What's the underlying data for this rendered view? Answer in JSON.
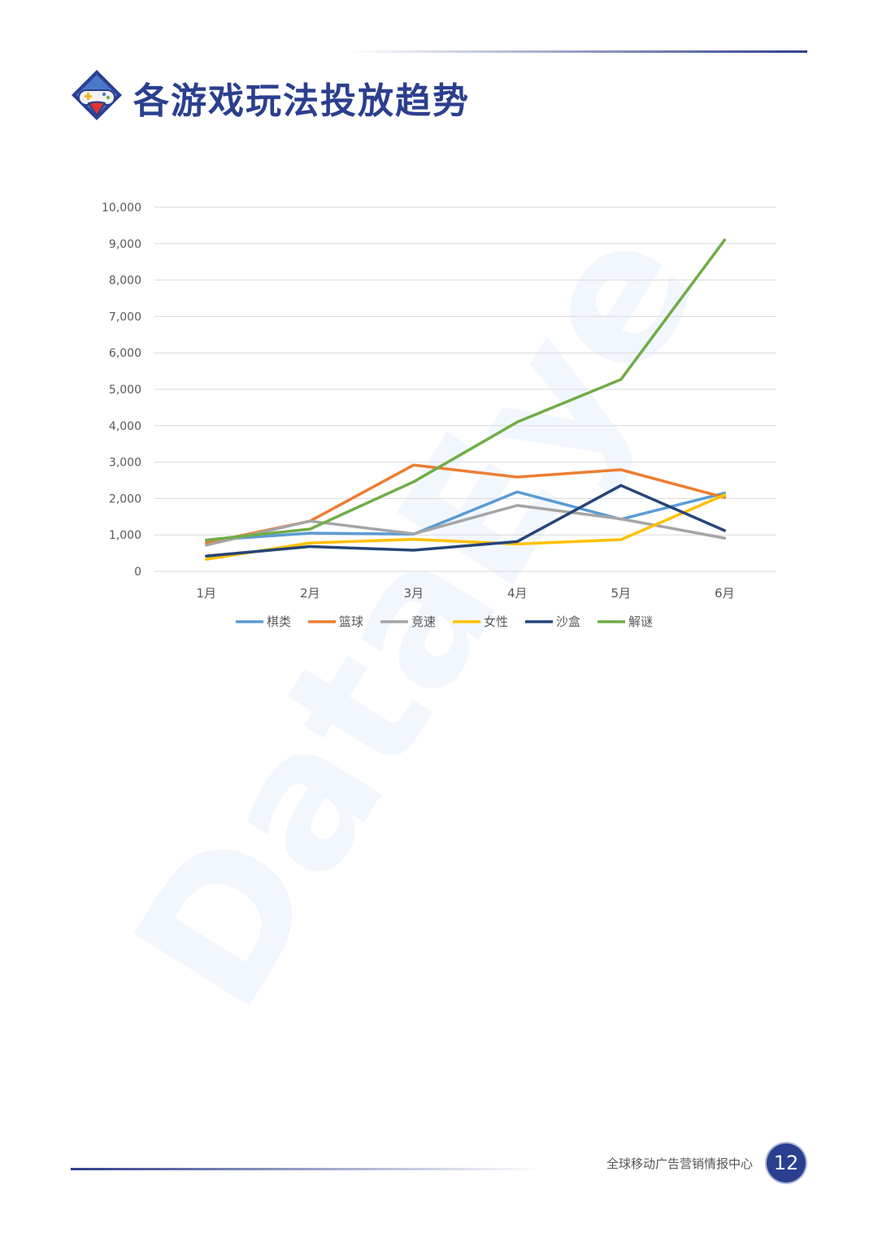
{
  "header": {
    "title": "各游戏玩法投放趋势"
  },
  "watermark": {
    "text": "DataEye"
  },
  "footer": {
    "org": "全球移动广告营销情报中心",
    "page": "12"
  },
  "colors": {
    "brand": "#2b3f8f",
    "grid": "#d9d9d9",
    "axis_text": "#595959"
  },
  "icons": {
    "logo": "gamepad-badge-icon"
  },
  "chart_data": {
    "type": "line",
    "title": "",
    "xlabel": "",
    "ylabel": "",
    "categories": [
      "1月",
      "2月",
      "3月",
      "4月",
      "5月",
      "6月"
    ],
    "ylim": [
      0,
      10000
    ],
    "yticks": [
      0,
      1000,
      2000,
      3000,
      4000,
      5000,
      6000,
      7000,
      8000,
      9000,
      10000
    ],
    "ytick_labels": [
      "0",
      "1,000",
      "2,000",
      "3,000",
      "4,000",
      "5,000",
      "6,000",
      "7,000",
      "8,000",
      "9,000",
      "10,000"
    ],
    "grid": true,
    "legend_position": "bottom",
    "series": [
      {
        "name": "棋类",
        "color": "#5b9bd5",
        "values": [
          850,
          1050,
          1020,
          2180,
          1430,
          2150
        ]
      },
      {
        "name": "篮球",
        "color": "#ed7d31",
        "values": [
          780,
          1380,
          2920,
          2590,
          2790,
          2030
        ]
      },
      {
        "name": "竞速",
        "color": "#a5a5a5",
        "values": [
          720,
          1380,
          1030,
          1810,
          1440,
          910
        ]
      },
      {
        "name": "女性",
        "color": "#ffc000",
        "values": [
          330,
          780,
          880,
          750,
          870,
          2100
        ]
      },
      {
        "name": "沙盒",
        "color": "#264478",
        "values": [
          420,
          680,
          580,
          820,
          2360,
          1120
        ]
      },
      {
        "name": "解谜",
        "color": "#70ad47",
        "values": [
          860,
          1160,
          2460,
          4100,
          5270,
          9100
        ]
      }
    ]
  }
}
